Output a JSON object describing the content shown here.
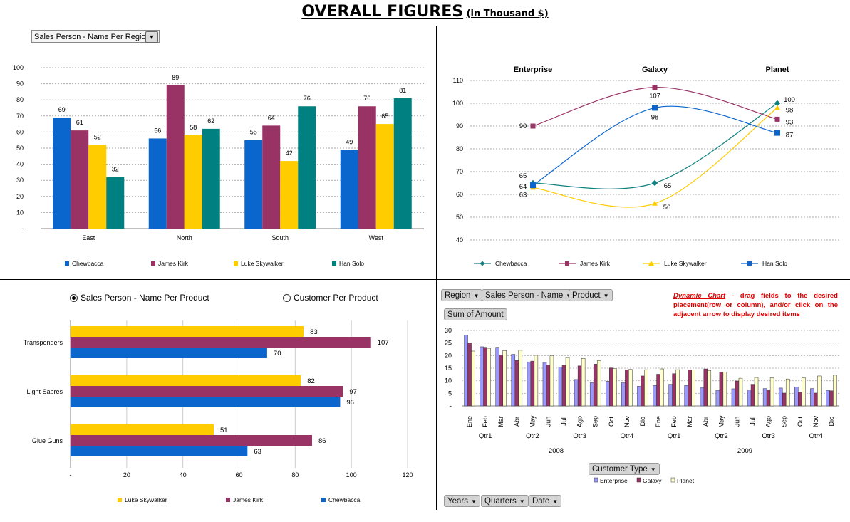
{
  "title": "OVERALL FIGURES",
  "subtitle": "(in Thousand $)",
  "colors": {
    "chewbacca": "#0a66cc",
    "james": "#993366",
    "luke": "#ffcc00",
    "han": "#008080"
  },
  "top_left": {
    "dropdown": "Sales Person - Name Per Region",
    "chart_data": {
      "type": "bar",
      "categories": [
        "East",
        "North",
        "South",
        "West"
      ],
      "series": [
        {
          "name": "Chewbacca",
          "values": [
            69,
            56,
            55,
            49
          ]
        },
        {
          "name": "James Kirk",
          "values": [
            61,
            89,
            64,
            76
          ]
        },
        {
          "name": "Luke Skywalker",
          "values": [
            52,
            58,
            42,
            65
          ]
        },
        {
          "name": "Han Solo",
          "values": [
            32,
            62,
            76,
            81
          ]
        }
      ],
      "ylim": [
        0,
        100
      ],
      "yticks": [
        "-",
        "10",
        "20",
        "30",
        "40",
        "50",
        "60",
        "70",
        "80",
        "90",
        "100"
      ],
      "legend": "bottom"
    }
  },
  "top_right": {
    "chart_data": {
      "type": "line",
      "categories": [
        "Enterprise",
        "Galaxy",
        "Planet"
      ],
      "series": [
        {
          "name": "Chewbacca",
          "values": [
            65,
            65,
            100
          ]
        },
        {
          "name": "James Kirk",
          "values": [
            90,
            107,
            93
          ]
        },
        {
          "name": "Luke Skywalker",
          "values": [
            63,
            56,
            98
          ]
        },
        {
          "name": "Han Solo",
          "values": [
            64,
            98,
            87
          ]
        }
      ],
      "ylim": [
        40,
        110
      ],
      "yticks": [
        "40",
        "50",
        "60",
        "70",
        "80",
        "90",
        "100",
        "110"
      ],
      "legend": "bottom"
    }
  },
  "bottom_left": {
    "radio_1": "Sales Person - Name Per Product",
    "radio_2": "Customer Per Product",
    "chart_data": {
      "type": "bar",
      "orientation": "horizontal",
      "categories": [
        "Transponders",
        "Light Sabres",
        "Glue Guns"
      ],
      "series": [
        {
          "name": "Luke Skywalker",
          "values": [
            83,
            82,
            51
          ]
        },
        {
          "name": "James Kirk",
          "values": [
            107,
            97,
            86
          ]
        },
        {
          "name": "Chewbacca",
          "values": [
            70,
            96,
            63
          ]
        }
      ],
      "xlim": [
        0,
        120
      ],
      "xticks": [
        "-",
        "20",
        "40",
        "60",
        "80",
        "100",
        "120"
      ],
      "legend": "bottom"
    }
  },
  "bottom_right": {
    "fields": [
      "Region",
      "Sales Person - Name",
      "Product"
    ],
    "sum_label": "Sum of Amount",
    "note_em": "Dynamic Chart",
    "note_text": " - drag fields to the desired placement(row or column), and/or click on the adjacent arrow to display desired items",
    "customer_type": "Customer Type",
    "axis_fields": [
      "Years",
      "Quarters",
      "Date"
    ],
    "chart_data": {
      "type": "bar",
      "months": [
        "Ene",
        "Feb",
        "Mar",
        "Abr",
        "May",
        "Jun",
        "Jul",
        "Ago",
        "Sep",
        "Oct",
        "Nov",
        "Dic",
        "Ene",
        "Feb",
        "Mar",
        "Abr",
        "May",
        "Jun",
        "Jul",
        "Ago",
        "Sep",
        "Oct",
        "Nov",
        "Dic"
      ],
      "quarters": [
        "Qtr1",
        "Qtr2",
        "Qtr3",
        "Qtr4",
        "Qtr1",
        "Qtr2",
        "Qtr3",
        "Qtr4"
      ],
      "years": [
        "2008",
        "2009"
      ],
      "series": [
        {
          "name": "Enterprise",
          "values": [
            28.2,
            23.5,
            23.3,
            20.5,
            17.5,
            17.3,
            15.5,
            10.5,
            9.2,
            9.8,
            9.2,
            7.8,
            8.1,
            8.6,
            8.1,
            7.2,
            6.2,
            6.8,
            6.3,
            6.9,
            7.1,
            7.5,
            6.9,
            6.2
          ]
        },
        {
          "name": "Galaxy",
          "values": [
            25,
            23.3,
            20.3,
            18.1,
            17.8,
            16.3,
            16.2,
            15.9,
            16.6,
            15.1,
            14.3,
            11.9,
            12.6,
            12.8,
            14.3,
            14.7,
            13.5,
            9.9,
            8.6,
            6.3,
            5.1,
            5.5,
            5.1,
            6
          ]
        },
        {
          "name": "Planet",
          "values": [
            21.8,
            22.9,
            22,
            22.1,
            20.1,
            19.9,
            19.2,
            18.9,
            18,
            14.8,
            14.5,
            14.4,
            14.7,
            14.4,
            14.3,
            14.1,
            13.5,
            11,
            11.3,
            11.2,
            10.7,
            11.2,
            11.9,
            12.2
          ]
        }
      ],
      "ylim": [
        0,
        30
      ],
      "yticks": [
        "-",
        "5",
        "10",
        "15",
        "20",
        "25",
        "30"
      ],
      "colors": [
        "#9999ff",
        "#993366",
        "#ffffcc"
      ],
      "legend": "bottom"
    }
  }
}
